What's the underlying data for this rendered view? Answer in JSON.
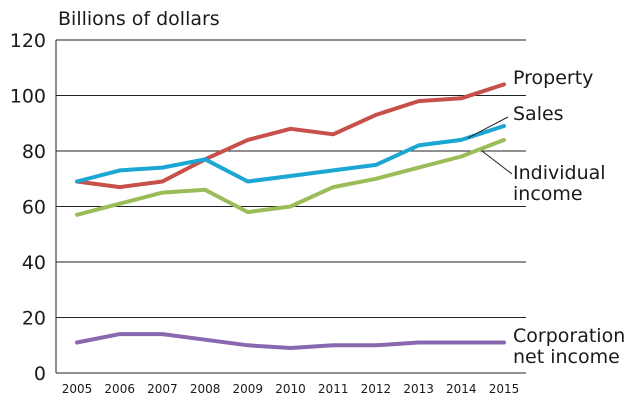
{
  "chart_data": {
    "type": "line",
    "title": "",
    "ylabel": "Billions of dollars",
    "xlabel": "",
    "x": [
      "2005",
      "2006",
      "2007",
      "2008",
      "2009",
      "2010",
      "2011",
      "2012",
      "2013",
      "2014",
      "2015"
    ],
    "ylim": [
      0,
      120
    ],
    "yticks": [
      0,
      20,
      40,
      60,
      80,
      100,
      120
    ],
    "grid": true,
    "series": [
      {
        "name": "Property",
        "label_lines": [
          "Property"
        ],
        "color": "#c8504a",
        "values": [
          69,
          67,
          69,
          77,
          84,
          88,
          86,
          93,
          98,
          99,
          104
        ]
      },
      {
        "name": "Sales",
        "label_lines": [
          "Sales"
        ],
        "color": "#1ba6d3",
        "values": [
          69,
          73,
          74,
          77,
          69,
          71,
          73,
          75,
          82,
          84,
          89
        ]
      },
      {
        "name": "Individual income",
        "label_lines": [
          "Individual",
          "income"
        ],
        "color": "#9bbd59",
        "values": [
          57,
          61,
          65,
          66,
          58,
          60,
          67,
          70,
          74,
          78,
          84
        ]
      },
      {
        "name": "Corporation net income",
        "label_lines": [
          "Corporation",
          "net income"
        ],
        "color": "#8a68b0",
        "values": [
          11,
          14,
          14,
          12,
          10,
          9,
          10,
          10,
          11,
          11,
          11
        ]
      }
    ]
  }
}
